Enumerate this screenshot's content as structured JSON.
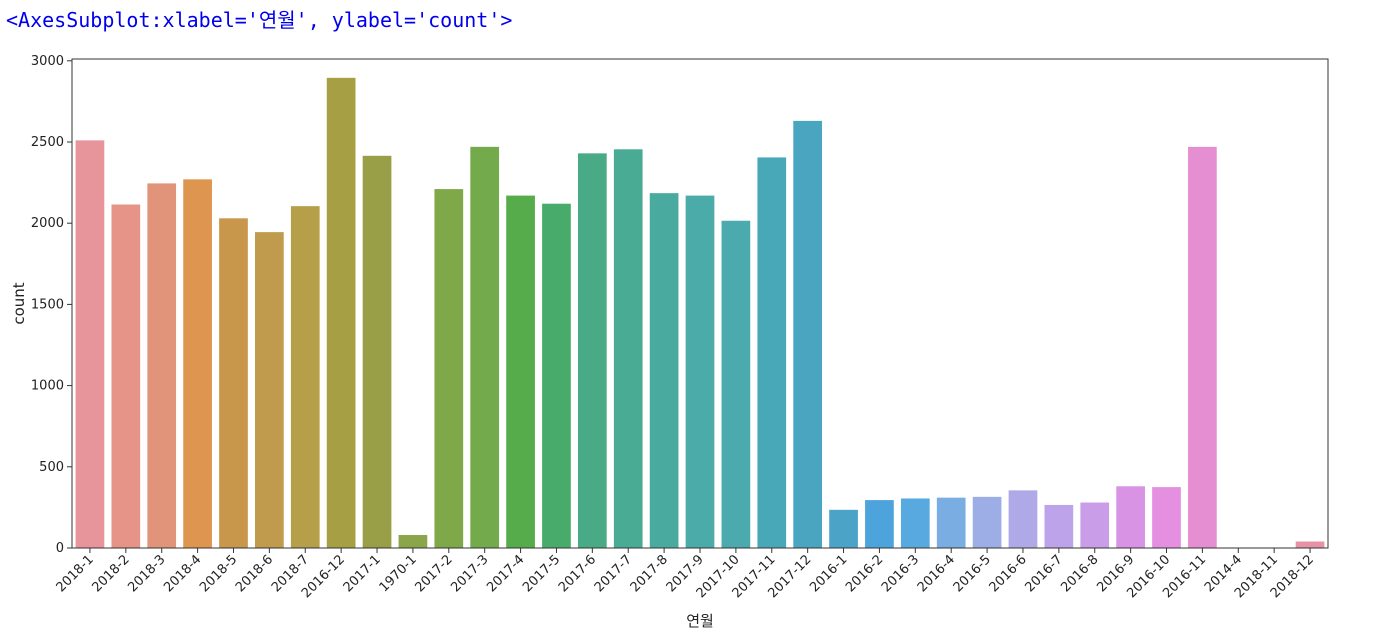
{
  "output_repr": "<AxesSubplot:xlabel='연월', ylabel='count'>",
  "chart_data": {
    "type": "bar",
    "xlabel": "연월",
    "ylabel": "count",
    "ylim": [
      0,
      3000
    ],
    "yticks": [
      0,
      500,
      1000,
      1500,
      2000,
      2500,
      3000
    ],
    "grid": false,
    "categories": [
      "2018-1",
      "2018-2",
      "2018-3",
      "2018-4",
      "2018-5",
      "2018-6",
      "2018-7",
      "2016-12",
      "2017-1",
      "1970-1",
      "2017-2",
      "2017-3",
      "2017-4",
      "2017-5",
      "2017-6",
      "2017-7",
      "2017-8",
      "2017-9",
      "2017-10",
      "2017-11",
      "2017-12",
      "2016-1",
      "2016-2",
      "2016-3",
      "2016-4",
      "2016-5",
      "2016-6",
      "2016-7",
      "2016-8",
      "2016-9",
      "2016-10",
      "2016-11",
      "2014-4",
      "2018-11",
      "2018-12"
    ],
    "values": [
      2510,
      2115,
      2245,
      2270,
      2030,
      1945,
      2105,
      2895,
      2415,
      80,
      2210,
      2470,
      2170,
      2120,
      2430,
      2455,
      2185,
      2170,
      2015,
      2405,
      2630,
      235,
      295,
      305,
      310,
      315,
      355,
      265,
      280,
      380,
      375,
      2470,
      2,
      2,
      40
    ],
    "colors": [
      "#e8949b",
      "#e59487",
      "#e2947a",
      "#dd9550",
      "#c9974c",
      "#c09b4d",
      "#b69f49",
      "#a69f44",
      "#989f47",
      "#8ba64a",
      "#7fa848",
      "#73aa4b",
      "#56ab4a",
      "#48ab6b",
      "#49ab85",
      "#4aab95",
      "#49ab9f",
      "#4aaba8",
      "#4aaaad",
      "#49a8b8",
      "#4aa6c0",
      "#4ca3c8",
      "#4da4dc",
      "#58a9df",
      "#7aaee2",
      "#9daee6",
      "#b0a9e8",
      "#bda3e9",
      "#c99de8",
      "#d993e5",
      "#e58fe0",
      "#e58fd2",
      "#e590c6",
      "#e690b6",
      "#e691a6"
    ]
  }
}
